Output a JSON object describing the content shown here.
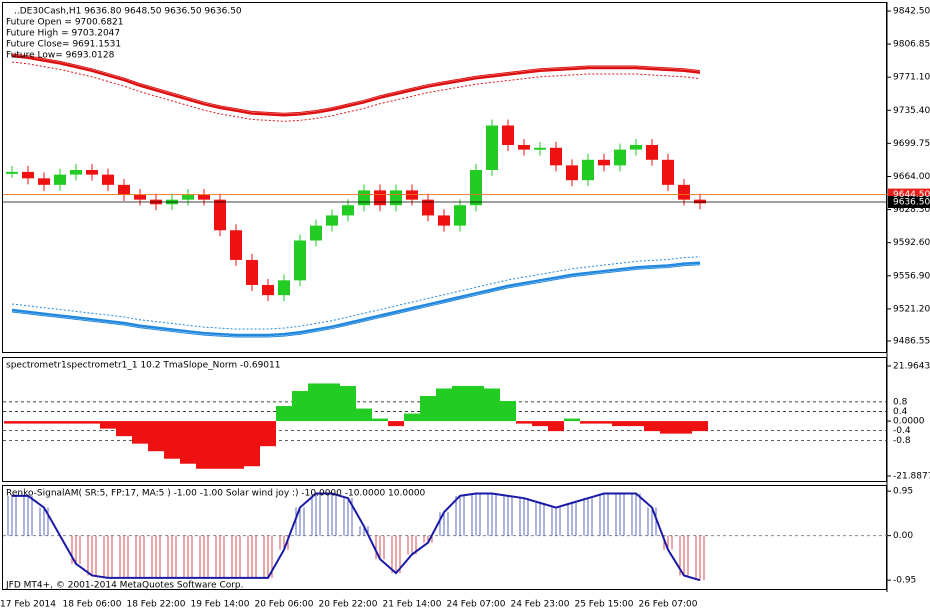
{
  "chart_data": [
    {
      "type": "candle",
      "annotations": [
        "..DE30Cash,H1  9636.80 9648.50 9636.50 9636.50",
        "Future Open = 9700.6821",
        "Future High = 9703.2047",
        "Future Close= 9691.1531",
        "Future Low= 9693.0128"
      ],
      "categories": [
        null,
        "17 Feb 2014",
        null,
        null,
        null,
        "18 Feb 06:00",
        null,
        null,
        null,
        "18 Feb 22:00",
        null,
        null,
        null,
        "19 Feb 14:00",
        null,
        null,
        null,
        "20 Feb 06:00",
        null,
        null,
        null,
        "20 Feb 22:00",
        null,
        null,
        null,
        "21 Feb 14:00",
        null,
        null,
        null,
        "24 Feb 07:00",
        null,
        null,
        null,
        "24 Feb 23:00",
        null,
        null,
        null,
        "25 Feb 15:00",
        null,
        null,
        null,
        "26 Feb 07:00",
        null,
        null
      ],
      "series": [
        {
          "color": "#22cc22",
          "down_color": "#ee1111",
          "values": [
            9669,
            9662,
            9655,
            9666,
            9671,
            9666,
            9655,
            9644,
            9639,
            9634,
            9639,
            9644,
            9639,
            9606,
            9574,
            9547,
            9536,
            9552,
            9595,
            9611,
            9622,
            9633,
            9649,
            9633,
            9649,
            9639,
            9622,
            9611,
            9633,
            9671,
            9719,
            9698,
            9693,
            9695,
            9676,
            9660,
            9682,
            9676,
            9693,
            9698,
            9682,
            9655,
            9639,
            9635
          ]
        },
        {
          "color": "#dd1111",
          "values": [
            9794,
            9792,
            9789,
            9786,
            9782,
            9778,
            9773,
            9768,
            9762,
            9757,
            9752,
            9747,
            9742,
            9738,
            9735,
            9732,
            9731,
            9730,
            9731,
            9733,
            9736,
            9740,
            9744,
            9749,
            9753,
            9757,
            9761,
            9764,
            9767,
            9770,
            9772,
            9774,
            9776,
            9778,
            9779,
            9780,
            9781,
            9781,
            9781,
            9781,
            9780,
            9779,
            9778,
            9776
          ]
        },
        {
          "color": "#2288dd",
          "values": [
            9520,
            9518,
            9516,
            9514,
            9512,
            9510,
            9508,
            9506,
            9503,
            9501,
            9499,
            9497,
            9495,
            9494,
            9493,
            9493,
            9493,
            9494,
            9496,
            9499,
            9502,
            9506,
            9510,
            9514,
            9518,
            9522,
            9526,
            9530,
            9534,
            9538,
            9542,
            9546,
            9549,
            9552,
            9555,
            9558,
            9560,
            9562,
            9564,
            9566,
            9567,
            9568,
            9570,
            9571
          ]
        }
      ],
      "price_lines": [
        {
          "value": 9644.5,
          "label": "9644.50",
          "color": "#e8741c"
        },
        {
          "value": 9636.5,
          "label": "9636.50",
          "color": "#000000"
        }
      ],
      "ylim": [
        9474.69,
        9851.13
      ],
      "yticks": [
        {
          "value": 9842.5,
          "label": "9842.50"
        },
        {
          "value": 9806.85,
          "label": "9806.85"
        },
        {
          "value": 9771.1,
          "label": "9771.10"
        },
        {
          "value": 9735.4,
          "label": "9735.40"
        },
        {
          "value": 9699.75,
          "label": "9699.75"
        },
        {
          "value": 9664,
          "label": "9664.00"
        },
        {
          "value": 9628.3,
          "label": "9628.30"
        },
        {
          "value": 9592.6,
          "label": "9592.60"
        },
        {
          "value": 9556.9,
          "label": "9556.90"
        },
        {
          "value": 9521.2,
          "label": "9521.20"
        },
        {
          "value": 9486.55,
          "label": "9486.55"
        }
      ]
    },
    {
      "type": "bar",
      "title": "spectrometr1spectrometr1_1  10.2 TmaSlope_Norm -0.69011",
      "color": "#22cc22",
      "down_color": "#ee1111",
      "values": [
        -1,
        -1,
        -1,
        -1,
        -1,
        -1,
        -3,
        -6,
        -9,
        -12,
        -15,
        -17,
        -19,
        -19,
        -19,
        -18,
        -10,
        6,
        12,
        15,
        15,
        14,
        5,
        1,
        -2,
        3,
        10,
        13,
        14,
        14,
        13,
        8,
        -1,
        -2,
        -4,
        1,
        -1,
        -1,
        -2,
        -2,
        -4,
        -5,
        -5,
        -4
      ],
      "levels": [
        0.8,
        0.4,
        -0.4,
        -0.8
      ],
      "ylim": [
        -24.28,
        25.15
      ],
      "yticks": [
        21.9643,
        {
          "value": 0,
          "label": "0.0000"
        },
        -21.8877
      ]
    },
    {
      "type": "line",
      "title": "Renko-SignalAM( SR:5, FP:17, MA:5 ) -1.00 -1.00  Solar wind joy :) -10.0000 -10.0000 10.0000",
      "footer": "JFD MT4+, © 2001-2014 MetaQuotes Software Corp.",
      "color": "#1a1aa8",
      "up_color": "#3344aa",
      "down_color": "#cc2222",
      "values": [
        0.85,
        0.85,
        0.6,
        0.0,
        -0.6,
        -0.85,
        -0.9,
        -0.9,
        -0.9,
        -0.9,
        -0.9,
        -0.9,
        -0.9,
        -0.9,
        -0.9,
        -0.9,
        -0.9,
        -0.3,
        0.6,
        0.9,
        0.9,
        0.8,
        0.2,
        -0.5,
        -0.8,
        -0.4,
        -0.15,
        0.5,
        0.85,
        0.9,
        0.9,
        0.85,
        0.8,
        0.7,
        0.6,
        0.7,
        0.8,
        0.9,
        0.9,
        0.9,
        0.6,
        -0.3,
        -0.85,
        -0.95
      ],
      "ylim": [
        -1.16,
        1.06
      ],
      "yticks": [
        0.95,
        {
          "value": 0,
          "label": "0.00"
        },
        -0.95
      ]
    }
  ]
}
